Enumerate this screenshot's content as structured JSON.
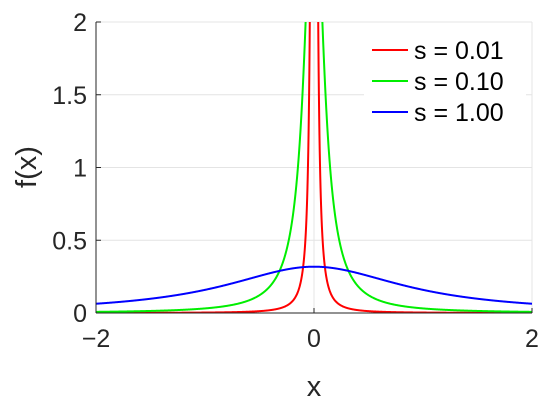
{
  "chart_data": {
    "type": "line",
    "title": "",
    "xlabel": "x",
    "ylabel": "f(x)",
    "xlim": [
      -2,
      2
    ],
    "ylim": [
      0,
      2
    ],
    "x_ticks": [
      -2,
      0,
      2
    ],
    "x_tick_labels": [
      "−2",
      "0",
      "2"
    ],
    "y_ticks": [
      0,
      0.5,
      1,
      1.5,
      2
    ],
    "y_tick_labels": [
      "0",
      "0.5",
      "1",
      "1.5",
      "2"
    ],
    "grid": true,
    "legend_position": "top-right",
    "function": "cauchy density f(x) = (1/π) · s / (x² + s²)",
    "series": [
      {
        "name": "s = 0.01",
        "s": 0.01,
        "color": "#ff0000"
      },
      {
        "name": "s = 0.10",
        "s": 0.1,
        "color": "#00ee00"
      },
      {
        "name": "s = 1.00",
        "s": 1.0,
        "color": "#0000ff"
      }
    ]
  }
}
